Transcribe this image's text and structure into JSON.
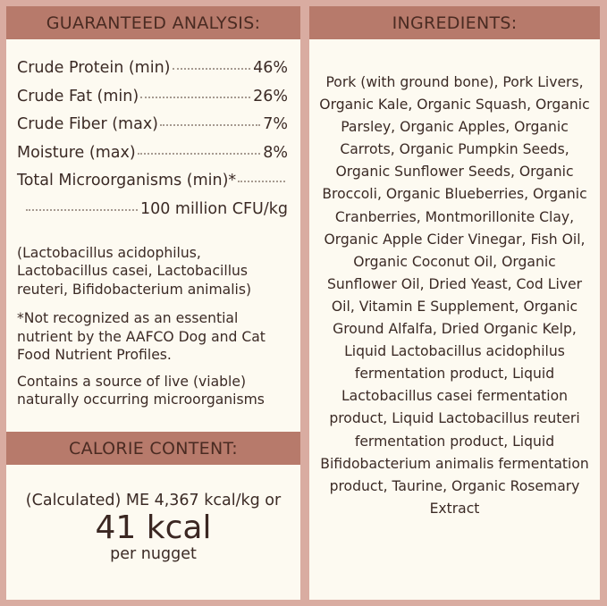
{
  "guaranteed_analysis": {
    "title": "GUARANTEED ANALYSIS:",
    "rows": [
      {
        "label": "Crude Protein (min)",
        "value": "46%"
      },
      {
        "label": "Crude Fat (min)",
        "value": "26%"
      },
      {
        "label": "Crude Fiber (max)",
        "value": "7%"
      },
      {
        "label": "Moisture (max)",
        "value": "8%"
      },
      {
        "label": "Total Microorganisms (min)*",
        "value": "100 million CFU/kg"
      }
    ],
    "strains": "(Lactobacillus acidophilus, Lactobacillus casei, Lactobacillus reuteri, Bifidobacterium animalis)",
    "footnote": "*Not recognized as an essential nutrient by the AAFCO Dog and Cat Food Nutrient Profiles.",
    "live_note": "Contains a source of live (viable) naturally occurring microorganisms"
  },
  "calorie_content": {
    "title": "CALORIE CONTENT:",
    "line1": "(Calculated) ME 4,367 kcal/kg or",
    "big": "41 kcal",
    "line3": "per nugget"
  },
  "ingredients": {
    "title": "INGREDIENTS:",
    "text": "Pork (with ground bone), Pork Livers, Organic Kale, Organic Squash, Organic Parsley, Organic Apples, Organic Carrots, Organic Pumpkin Seeds, Organic Sunflower Seeds, Organic Broccoli, Organic Blueberries, Organic Cranberries, Montmorillonite Clay, Organic Apple Cider Vinegar, Fish Oil, Organic Coconut Oil, Organic Sunflower Oil, Dried Yeast, Cod Liver Oil, Vitamin E Supplement, Organic Ground Alfalfa, Dried Organic Kelp, Liquid Lactobacillus acidophilus fermentation product, Liquid Lactobacillus casei fermentation product, Liquid Lactobacillus reuteri fermentation product, Liquid Bifidobacterium animalis fermentation product, Taurine, Organic Rosemary Extract"
  },
  "colors": {
    "background": "#d9aca1",
    "header": "#b77a6b",
    "panel": "#fdfaf1",
    "text": "#3b2a25"
  }
}
